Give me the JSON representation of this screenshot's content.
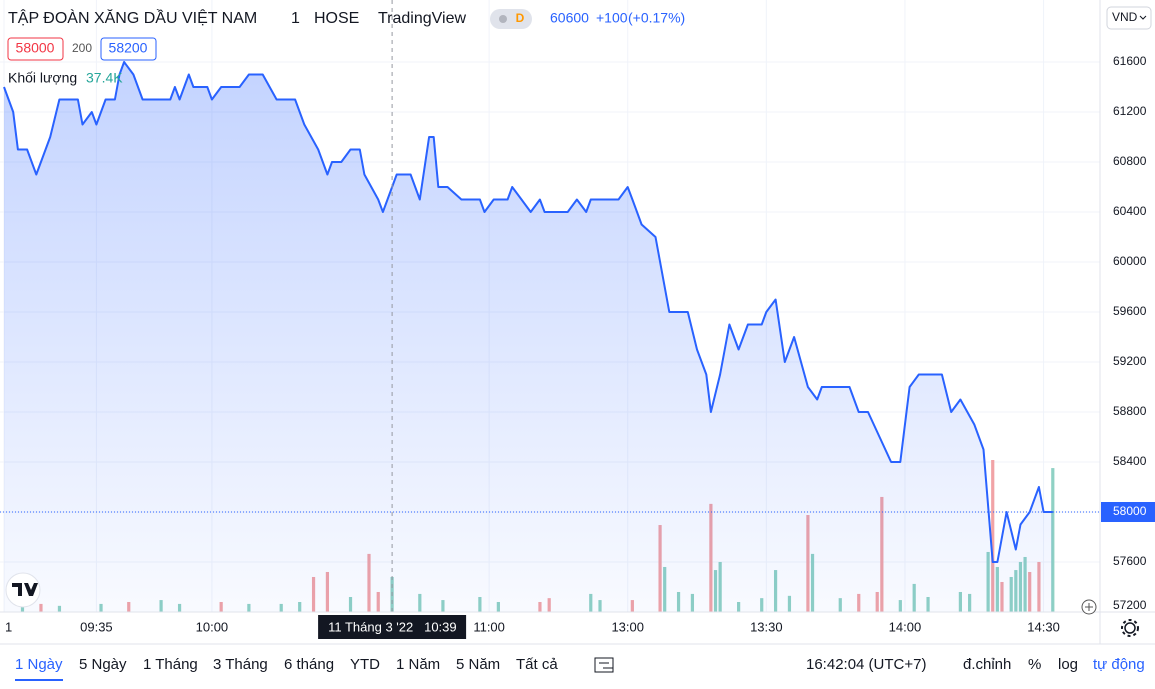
{
  "chart_data": {
    "type": "line",
    "title": "TẬP ĐOÀN XĂNG DẦU VIỆT NAM",
    "interval": "1",
    "exchange": "HOSE",
    "source": "TradingView",
    "badge": "D",
    "last_price": 60600,
    "change": {
      "value": 100,
      "label": "+100"
    },
    "change_pct": {
      "value": 0.17,
      "label": "(+0.17%)"
    },
    "bid": 58000,
    "spread": 200,
    "ask": 58200,
    "volume_title": "Khối lượng",
    "volume_last": {
      "value": 37400,
      "label": "37.4K"
    },
    "currency": "VND",
    "current_price": 58000,
    "ylim": [
      57200,
      62096
    ],
    "yticks": [
      57200,
      57600,
      58000,
      58400,
      58800,
      59200,
      59600,
      60000,
      60400,
      60800,
      61200,
      61600
    ],
    "xlim": [
      0,
      237
    ],
    "xticks": [
      {
        "value": 0,
        "label": "1"
      },
      {
        "value": 20,
        "label": "09:35"
      },
      {
        "value": 45,
        "label": "10:00"
      },
      {
        "value": 105,
        "label": "11:00"
      },
      {
        "value": 135,
        "label": "13:00"
      },
      {
        "value": 165,
        "label": "13:30"
      },
      {
        "value": 195,
        "label": "14:00"
      },
      {
        "value": 225,
        "label": "14:30"
      }
    ],
    "crosshair": {
      "x": 84,
      "date": "11 Tháng 3 '22",
      "time": "10:39"
    },
    "line": {
      "color": "#2962ff",
      "x": [
        0,
        1,
        2,
        3,
        5,
        7,
        10,
        12,
        16,
        17,
        19,
        20,
        22,
        24,
        25,
        26,
        28,
        30,
        36,
        37,
        38,
        40,
        41,
        44,
        45,
        47,
        51,
        53,
        56,
        59,
        63,
        65,
        68,
        70,
        71,
        73,
        75,
        77,
        78,
        81,
        82,
        85,
        88,
        90,
        92,
        93,
        94,
        96,
        99,
        103,
        104,
        106,
        109,
        110,
        112,
        114,
        116,
        117,
        122,
        124,
        126,
        127,
        133,
        135,
        136,
        138,
        141,
        144,
        148,
        150,
        152,
        153,
        155,
        157,
        159,
        161,
        164,
        165,
        167,
        169,
        171,
        174,
        176,
        177,
        183,
        185,
        187,
        192,
        194,
        196,
        198,
        203,
        205,
        207,
        210,
        212,
        214,
        215,
        217,
        219,
        220,
        222,
        224,
        225,
        227
      ],
      "values": [
        61400,
        61300,
        61200,
        60900,
        60900,
        60700,
        61000,
        61300,
        61300,
        61100,
        61200,
        61100,
        61300,
        61300,
        61500,
        61600,
        61500,
        61300,
        61300,
        61400,
        61300,
        61500,
        61400,
        61400,
        61300,
        61400,
        61400,
        61500,
        61500,
        61300,
        61300,
        61100,
        60900,
        60700,
        60800,
        60800,
        60900,
        60900,
        60700,
        60500,
        60400,
        60700,
        60700,
        60500,
        61000,
        61000,
        60600,
        60600,
        60500,
        60500,
        60400,
        60500,
        60500,
        60600,
        60500,
        60400,
        60500,
        60400,
        60400,
        60500,
        60400,
        60500,
        60500,
        60600,
        60500,
        60300,
        60200,
        59600,
        59600,
        59300,
        59100,
        58800,
        59100,
        59500,
        59300,
        59500,
        59500,
        59600,
        59700,
        59200,
        59400,
        59000,
        58900,
        59000,
        59000,
        58800,
        58800,
        58400,
        58400,
        59000,
        59100,
        59100,
        58800,
        58900,
        58700,
        58500,
        57600,
        57600,
        58000,
        57700,
        57900,
        58000,
        58200,
        58000,
        58000
      ]
    },
    "volume": {
      "up_color": "#8fd1c4",
      "down_color": "#f1a3a6",
      "x": [
        4,
        8,
        12,
        21,
        27,
        34,
        38,
        47,
        53,
        60,
        64,
        67,
        70,
        75,
        79,
        81,
        84,
        90,
        95,
        103,
        107,
        116,
        118,
        127,
        129,
        136,
        142,
        143,
        146,
        149,
        153,
        154,
        155,
        159,
        164,
        167,
        170,
        174,
        175,
        181,
        185,
        189,
        190,
        194,
        197,
        200,
        207,
        209,
        213,
        214,
        215,
        216,
        218,
        219,
        220,
        221,
        222,
        224,
        227
      ],
      "values": [
        2600,
        2100,
        1600,
        2100,
        2600,
        3100,
        2100,
        2600,
        2100,
        2100,
        2600,
        9100,
        10400,
        3900,
        15100,
        5200,
        9100,
        4700,
        3100,
        3900,
        2600,
        2600,
        3600,
        4700,
        3100,
        3100,
        22600,
        11700,
        5200,
        4700,
        28100,
        10900,
        13000,
        2600,
        3600,
        10900,
        4200,
        25200,
        15100,
        3600,
        4700,
        5200,
        29900,
        3100,
        7300,
        3900,
        5200,
        4700,
        15600,
        39500,
        11700,
        7800,
        9100,
        10900,
        13000,
        14300,
        10400,
        13000,
        37400
      ],
      "up": [
        true,
        false,
        true,
        true,
        false,
        true,
        true,
        false,
        true,
        true,
        true,
        false,
        false,
        true,
        false,
        false,
        true,
        true,
        true,
        true,
        true,
        false,
        false,
        true,
        true,
        false,
        false,
        true,
        true,
        true,
        false,
        true,
        true,
        true,
        true,
        true,
        true,
        false,
        true,
        true,
        false,
        false,
        false,
        true,
        true,
        true,
        true,
        true,
        true,
        false,
        true,
        false,
        true,
        true,
        true,
        true,
        false,
        false,
        true
      ]
    },
    "ranges": [
      "1 Ngày",
      "5 Ngày",
      "1 Tháng",
      "3 Tháng",
      "6 tháng",
      "YTD",
      "1 Năm",
      "5 Năm",
      "Tất cả"
    ],
    "clock": "16:42:04 (UTC+7)",
    "options": [
      "đ.chỉnh",
      "%",
      "log",
      "tự động"
    ]
  }
}
